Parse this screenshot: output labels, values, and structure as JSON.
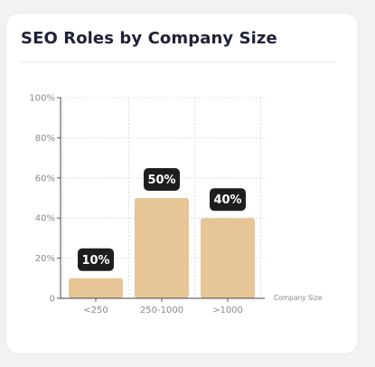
{
  "chart_data": {
    "type": "bar",
    "title": "SEO Roles by Company Size",
    "xlabel": "Company Size",
    "ylabel": "",
    "categories": [
      "<250",
      "250-1000",
      ">1000"
    ],
    "values": [
      10,
      50,
      40
    ],
    "data_labels": [
      "10%",
      "50%",
      "40%"
    ],
    "ylim": [
      0,
      100
    ],
    "yticks": [
      0,
      20,
      40,
      60,
      80,
      100
    ],
    "ytick_labels": [
      "0",
      "20%",
      "40%",
      "60%",
      "80%",
      "100%"
    ],
    "grid": "dashed",
    "bar_color": "#e6c597",
    "label_bg_color": "#1e1e1e"
  }
}
